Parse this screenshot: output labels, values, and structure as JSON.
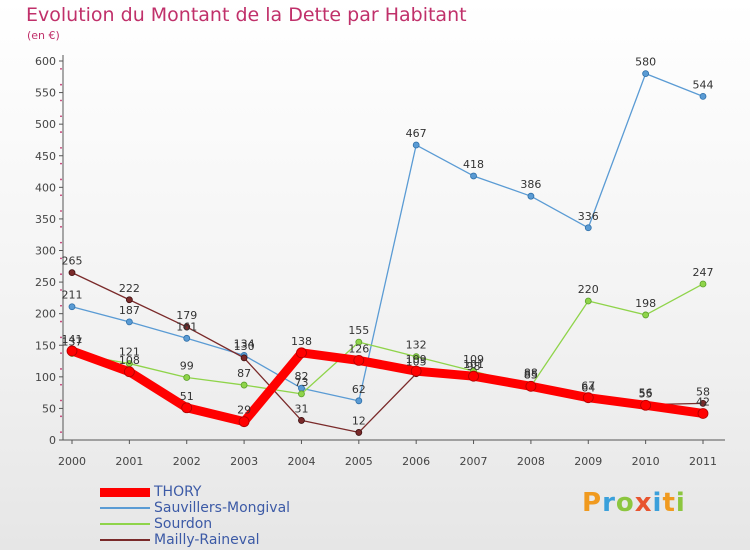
{
  "header": {
    "title": "Evolution du Montant de la Dette par Habitant",
    "subtitle": "(en €)"
  },
  "logo": {
    "text": "Proxiti",
    "letters": [
      {
        "ch": "P",
        "color": "#f09a1f"
      },
      {
        "ch": "r",
        "color": "#3aa0db"
      },
      {
        "ch": "o",
        "color": "#8cc63f"
      },
      {
        "ch": "x",
        "color": "#e8542f"
      },
      {
        "ch": "i",
        "color": "#3aa0db"
      },
      {
        "ch": "t",
        "color": "#f09a1f"
      },
      {
        "ch": "i",
        "color": "#8cc63f"
      }
    ]
  },
  "chart_data": {
    "type": "line",
    "title": "Evolution du Montant de la Dette par Habitant",
    "ylabel": "(en €)",
    "xlabel": "",
    "ylim": [
      0,
      600
    ],
    "yticks": [
      0,
      50,
      100,
      150,
      200,
      250,
      300,
      350,
      400,
      450,
      500,
      550,
      600
    ],
    "x": [
      "2000",
      "2001",
      "2002",
      "2003",
      "2004",
      "2005",
      "2006",
      "2007",
      "2008",
      "2009",
      "2010",
      "2011"
    ],
    "grid": false,
    "legend_position": "bottom-left",
    "series": [
      {
        "name": "THORY",
        "color": "#ff0000",
        "values": [
          141,
          108,
          51,
          29,
          138,
          126,
          109,
          101,
          85,
          67,
          55,
          42
        ]
      },
      {
        "name": "Sauvillers-Mongival",
        "color": "#5a9bd4",
        "values": [
          211,
          187,
          161,
          134,
          82,
          62,
          467,
          418,
          386,
          336,
          580,
          544
        ]
      },
      {
        "name": "Sourdon",
        "color": "#8fd44a",
        "values": [
          137,
          121,
          99,
          87,
          73,
          155,
          132,
          109,
          85,
          220,
          198,
          247
        ]
      },
      {
        "name": "Mailly-Raineval",
        "color": "#7a2a2a",
        "values": [
          265,
          222,
          179,
          130,
          31,
          12,
          105,
          98,
          88,
          64,
          56,
          58
        ]
      }
    ]
  }
}
